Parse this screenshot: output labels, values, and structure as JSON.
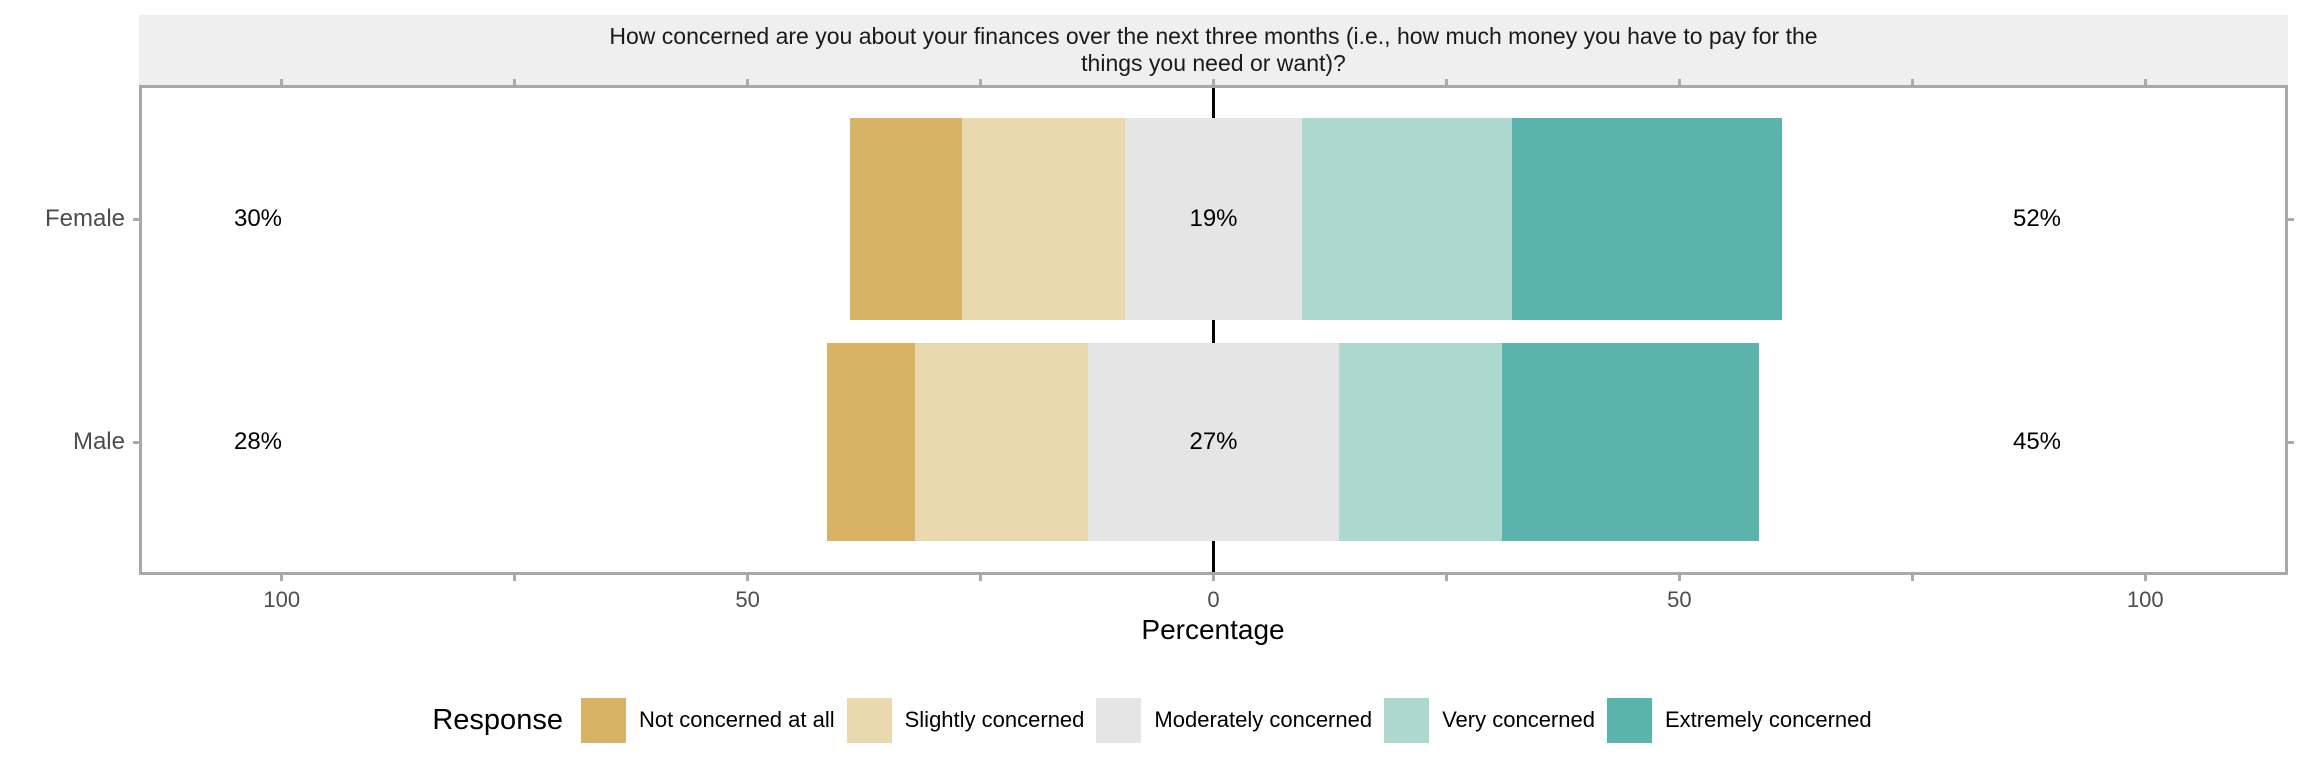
{
  "strip": {
    "title_line1": "How concerned are you about your finances over the next three months (i.e., how much money you have to pay for the",
    "title_line2": "things you need or want)?"
  },
  "axis": {
    "x_title": "Percentage"
  },
  "legend": {
    "title": "Response"
  },
  "colors": {
    "strip_bg": "#EFEFEF",
    "panel_border": "#A8A8A8",
    "axis_text": "#4D4D4D",
    "annotation_text": "#000000",
    "zero_line": "#000000"
  },
  "chart_data": {
    "type": "diverging_stacked_bar",
    "title": "How concerned are you about your finances over the next three months (i.e., how much money you have to pay for the things you need or want)?",
    "xlabel": "Percentage",
    "ylabel": "",
    "xlim": [
      -115,
      115
    ],
    "grid": false,
    "legend_position": "bottom",
    "legend_title": "Response",
    "categories": [
      "Female",
      "Male"
    ],
    "response_levels": [
      "Not concerned at all",
      "Slightly concerned",
      "Moderately concerned",
      "Very concerned",
      "Extremely concerned"
    ],
    "series": [
      {
        "name": "Not concerned at all",
        "color": "#D8B365",
        "values": [
          12.0,
          9.5
        ]
      },
      {
        "name": "Slightly concerned",
        "color": "#EAD9AF",
        "values": [
          17.5,
          18.5
        ]
      },
      {
        "name": "Moderately concerned",
        "color": "#E5E5E5",
        "values": [
          19.0,
          27.0
        ]
      },
      {
        "name": "Very concerned",
        "color": "#ACD8CF",
        "values": [
          22.5,
          17.5
        ]
      },
      {
        "name": "Extremely concerned",
        "color": "#5AB4AC",
        "values": [
          29.0,
          27.5
        ]
      }
    ],
    "row_labels": {
      "left": [
        "30%",
        "28%"
      ],
      "center": [
        "19%",
        "27%"
      ],
      "right": [
        "52%",
        "45%"
      ]
    },
    "x_ticks": [
      {
        "value": -100,
        "label": "100"
      },
      {
        "value": -75,
        "label": ""
      },
      {
        "value": -50,
        "label": "50"
      },
      {
        "value": -25,
        "label": ""
      },
      {
        "value": 0,
        "label": "0"
      },
      {
        "value": 25,
        "label": ""
      },
      {
        "value": 50,
        "label": "50"
      },
      {
        "value": 75,
        "label": ""
      },
      {
        "value": 100,
        "label": "100"
      }
    ]
  }
}
